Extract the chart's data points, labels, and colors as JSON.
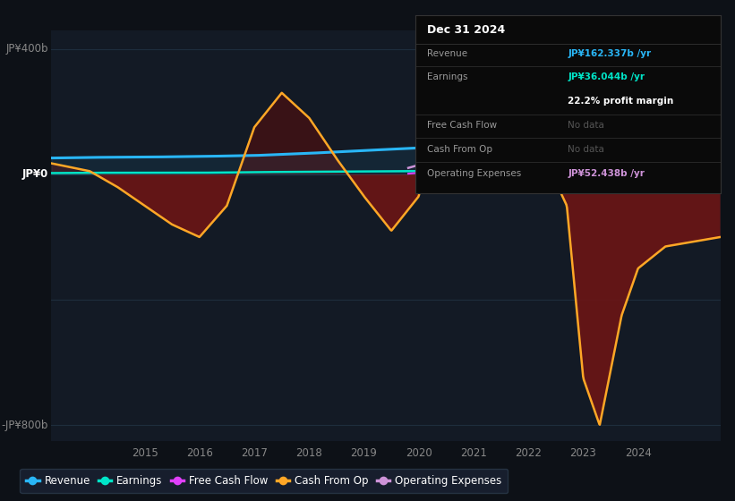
{
  "bg_color": "#0d1117",
  "chart_bg": "#131a25",
  "ylim_min": -850,
  "ylim_max": 460,
  "xlim_min": 2013.3,
  "xlim_max": 2025.5,
  "revenue_color": "#29b6f6",
  "earnings_color": "#00e5c8",
  "fcf_color": "#e040fb",
  "cashfromop_color": "#ffa726",
  "opex_color": "#ce93d8",
  "fill_neg_color": "#6b1515",
  "fill_pos_color": "#4a1010",
  "revenue_pts_x": [
    2013.3,
    2014,
    2015,
    2016,
    2017,
    2018,
    2019,
    2020,
    2021,
    2022,
    2023,
    2024,
    2025.5
  ],
  "revenue_pts_y": [
    52,
    54,
    55,
    57,
    60,
    67,
    76,
    84,
    105,
    128,
    148,
    162,
    167
  ],
  "earnings_pts_x": [
    2013.3,
    2014,
    2015,
    2016,
    2017,
    2018,
    2019,
    2020,
    2021,
    2022,
    2023,
    2024,
    2025.5
  ],
  "earnings_pts_y": [
    4,
    5,
    5,
    5,
    7,
    8,
    9,
    10,
    18,
    26,
    28,
    36,
    38
  ],
  "cop_pts_x": [
    2013.3,
    2014.0,
    2014.5,
    2015.0,
    2015.5,
    2016.0,
    2016.5,
    2017.0,
    2017.5,
    2018.0,
    2018.5,
    2019.0,
    2019.5,
    2020.0,
    2020.3,
    2020.7,
    2021.0,
    2021.3,
    2021.7,
    2022.0,
    2022.3,
    2022.7,
    2023.0,
    2023.3,
    2023.7,
    2024.0,
    2024.5,
    2025.5
  ],
  "cop_pts_y": [
    35,
    10,
    -40,
    -100,
    -160,
    -200,
    -100,
    150,
    260,
    180,
    50,
    -70,
    -180,
    -70,
    200,
    380,
    420,
    400,
    350,
    200,
    50,
    -100,
    -650,
    -800,
    -450,
    -300,
    -230,
    -200
  ],
  "opex_start_x": 2019.8,
  "opex_pts_x": [
    2019.8,
    2020,
    2021,
    2022,
    2023,
    2024,
    2025.5
  ],
  "opex_pts_y": [
    20,
    30,
    40,
    45,
    48,
    52,
    53
  ],
  "fcf_pts_x": [
    2019.8,
    2020,
    2021,
    2022,
    2023,
    2024,
    2025.5
  ],
  "fcf_pts_y": [
    2,
    5,
    7,
    8,
    5,
    5,
    5
  ],
  "ytick_positions": [
    -800,
    -400,
    0,
    400
  ],
  "xtick_positions": [
    2015,
    2016,
    2017,
    2018,
    2019,
    2020,
    2021,
    2022,
    2023,
    2024
  ],
  "y0_label": "JP¥0",
  "y400_label": "JP¥400b",
  "yn800_label": "-JP¥800b",
  "info_date": "Dec 31 2024",
  "info_revenue_label": "Revenue",
  "info_revenue_val": "JP¥162.337b /yr",
  "info_earnings_label": "Earnings",
  "info_earnings_val": "JP¥36.044b /yr",
  "info_margin": "22.2% profit margin",
  "info_fcf_label": "Free Cash Flow",
  "info_fcf_val": "No data",
  "info_cashfromop_label": "Cash From Op",
  "info_cashfromop_val": "No data",
  "info_opex_label": "Operating Expenses",
  "info_opex_val": "JP¥52.438b /yr",
  "legend_labels": [
    "Revenue",
    "Earnings",
    "Free Cash Flow",
    "Cash From Op",
    "Operating Expenses"
  ],
  "legend_colors": [
    "#29b6f6",
    "#00e5c8",
    "#e040fb",
    "#ffa726",
    "#ce93d8"
  ]
}
